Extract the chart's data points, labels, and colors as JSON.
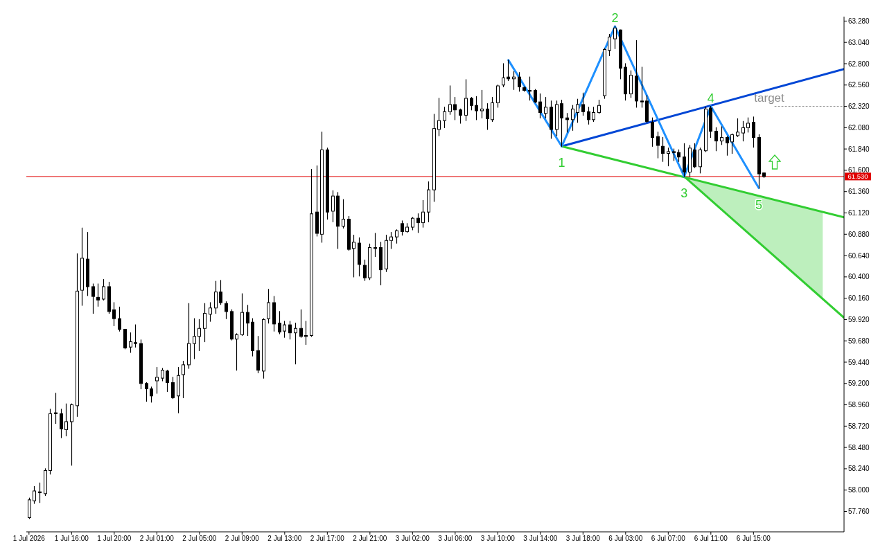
{
  "chart_data": {
    "type": "candlestick",
    "color": "#000000",
    "categories": [
      "1 Jul 2026",
      null,
      null,
      null,
      null,
      null,
      null,
      null,
      "1 Jul 16:00",
      null,
      null,
      null,
      null,
      null,
      null,
      null,
      "1 Jul 20:00",
      null,
      null,
      null,
      null,
      null,
      null,
      null,
      "2 Jul 01:00",
      null,
      null,
      null,
      null,
      null,
      null,
      null,
      "2 Jul 05:00",
      null,
      null,
      null,
      null,
      null,
      null,
      null,
      "2 Jul 09:00",
      null,
      null,
      null,
      null,
      null,
      null,
      null,
      "2 Jul 13:00",
      null,
      null,
      null,
      null,
      null,
      null,
      null,
      "2 Jul 17:00",
      null,
      null,
      null,
      null,
      null,
      null,
      null,
      "2 Jul 21:00",
      null,
      null,
      null,
      null,
      null,
      null,
      null,
      "3 Jul 02:00",
      null,
      null,
      null,
      null,
      null,
      null,
      null,
      "3 Jul 06:00",
      null,
      null,
      null,
      null,
      null,
      null,
      null,
      "3 Jul 10:00",
      null,
      null,
      null,
      null,
      null,
      null,
      null,
      "3 Jul 14:00",
      null,
      null,
      null,
      null,
      null,
      null,
      null,
      "3 Jul 18:00",
      null,
      null,
      null,
      null,
      null,
      null,
      null,
      "6 Jul 03:00",
      null,
      null,
      null,
      null,
      null,
      null,
      null,
      "6 Jul 07:00",
      null,
      null,
      null,
      null,
      null,
      null,
      null,
      "6 Jul 11:00",
      null,
      null,
      null,
      null,
      null,
      null,
      null,
      "6 Jul 15:00",
      null,
      null,
      null,
      null,
      null,
      null,
      null,
      null,
      null,
      null,
      null,
      null,
      null,
      null,
      null,
      null,
      null
    ],
    "ohlc": [
      [
        57.69,
        57.91,
        57.68,
        57.89
      ],
      [
        57.88,
        58.04,
        57.85,
        57.99
      ],
      [
        57.98,
        58.08,
        57.86,
        57.97
      ],
      [
        57.96,
        58.24,
        57.94,
        58.22
      ],
      [
        58.22,
        58.91,
        58.18,
        58.86
      ],
      [
        58.87,
        59.09,
        58.75,
        58.86
      ],
      [
        58.86,
        58.91,
        58.59,
        58.69
      ],
      [
        58.68,
        58.97,
        58.61,
        58.77
      ],
      [
        58.77,
        58.97,
        58.28,
        58.96
      ],
      [
        58.95,
        60.66,
        58.83,
        60.24
      ],
      [
        60.25,
        60.95,
        60.08,
        60.61
      ],
      [
        60.6,
        60.9,
        60.19,
        60.29
      ],
      [
        60.29,
        60.32,
        59.99,
        60.18
      ],
      [
        60.17,
        60.32,
        60.07,
        60.14
      ],
      [
        60.15,
        60.37,
        60.14,
        60.29
      ],
      [
        60.29,
        60.34,
        59.99,
        60.01
      ],
      [
        60.03,
        60.11,
        59.85,
        59.93
      ],
      [
        59.93,
        60.06,
        59.79,
        59.81
      ],
      [
        59.81,
        59.81,
        59.59,
        59.6
      ],
      [
        59.61,
        59.77,
        59.55,
        59.67
      ],
      [
        59.66,
        59.86,
        59.61,
        59.65
      ],
      [
        59.65,
        59.69,
        59.14,
        59.2
      ],
      [
        59.2,
        59.21,
        59.0,
        59.14
      ],
      [
        59.14,
        59.16,
        58.99,
        59.06
      ],
      [
        59.23,
        59.38,
        59.09,
        59.27
      ],
      [
        59.26,
        59.37,
        59.23,
        59.35
      ],
      [
        59.34,
        59.35,
        59.11,
        59.21
      ],
      [
        59.21,
        59.27,
        59.03,
        59.04
      ],
      [
        59.06,
        59.38,
        58.87,
        59.29
      ],
      [
        59.3,
        59.45,
        59.04,
        59.41
      ],
      [
        59.41,
        60.1,
        59.37,
        59.65
      ],
      [
        59.65,
        59.93,
        59.48,
        59.73
      ],
      [
        59.73,
        59.92,
        59.57,
        59.82
      ],
      [
        59.82,
        60.1,
        59.67,
        59.99
      ],
      [
        59.98,
        60.11,
        59.9,
        60.05
      ],
      [
        60.05,
        60.35,
        59.99,
        60.23
      ],
      [
        60.23,
        60.36,
        60.09,
        60.11
      ],
      [
        60.1,
        60.12,
        59.93,
        60.01
      ],
      [
        60.01,
        60.03,
        59.69,
        59.7
      ],
      [
        59.7,
        59.76,
        59.35,
        59.75
      ],
      [
        59.75,
        60.21,
        59.74,
        60.0
      ],
      [
        60.0,
        60.08,
        59.74,
        59.88
      ],
      [
        59.89,
        59.93,
        59.51,
        59.57
      ],
      [
        59.57,
        59.73,
        59.32,
        59.35
      ],
      [
        59.34,
        59.93,
        59.26,
        59.92
      ],
      [
        59.93,
        60.26,
        59.88,
        60.11
      ],
      [
        60.11,
        60.18,
        59.79,
        59.87
      ],
      [
        59.88,
        60.01,
        59.76,
        59.78
      ],
      [
        59.79,
        59.9,
        59.72,
        59.86
      ],
      [
        59.86,
        59.9,
        59.7,
        59.77
      ],
      [
        59.77,
        59.88,
        59.42,
        59.82
      ],
      [
        59.82,
        60.03,
        59.72,
        59.73
      ],
      [
        59.74,
        59.9,
        59.64,
        59.73
      ],
      [
        59.74,
        61.61,
        59.73,
        61.11
      ],
      [
        61.13,
        61.65,
        60.86,
        60.89
      ],
      [
        60.88,
        62.03,
        60.79,
        61.83
      ],
      [
        61.83,
        61.85,
        61.05,
        61.13
      ],
      [
        61.14,
        61.37,
        61.02,
        61.31
      ],
      [
        61.31,
        61.35,
        60.72,
        60.97
      ],
      [
        60.97,
        61.27,
        60.95,
        61.05
      ],
      [
        61.05,
        61.08,
        60.7,
        60.71
      ],
      [
        60.72,
        60.87,
        60.4,
        60.79
      ],
      [
        60.78,
        60.84,
        60.41,
        60.54
      ],
      [
        60.53,
        60.59,
        60.36,
        60.39
      ],
      [
        60.39,
        60.77,
        60.37,
        60.73
      ],
      [
        60.73,
        60.89,
        60.63,
        60.72
      ],
      [
        60.73,
        60.79,
        60.31,
        60.48
      ],
      [
        60.49,
        60.87,
        60.46,
        60.81
      ],
      [
        60.81,
        60.9,
        60.72,
        60.85
      ],
      [
        60.85,
        60.93,
        60.78,
        60.92
      ],
      [
        61.0,
        61.03,
        60.87,
        60.91
      ],
      [
        60.91,
        61.0,
        60.9,
        60.96
      ],
      [
        60.96,
        61.07,
        60.93,
        61.06
      ],
      [
        61.06,
        61.11,
        60.9,
        61.01
      ],
      [
        61.01,
        61.26,
        60.96,
        61.13
      ],
      [
        61.13,
        61.47,
        61.02,
        61.38
      ],
      [
        61.38,
        62.23,
        61.25,
        62.07
      ],
      [
        62.06,
        62.41,
        61.99,
        62.16
      ],
      [
        62.16,
        62.31,
        62.08,
        62.26
      ],
      [
        62.26,
        62.55,
        62.23,
        62.34
      ],
      [
        62.34,
        62.42,
        62.17,
        62.28
      ],
      [
        62.28,
        62.29,
        62.13,
        62.22
      ],
      [
        62.22,
        62.62,
        62.16,
        62.41
      ],
      [
        62.41,
        62.42,
        62.28,
        62.33
      ],
      [
        62.33,
        62.43,
        62.17,
        62.27
      ],
      [
        62.27,
        62.5,
        62.19,
        62.29
      ],
      [
        62.29,
        62.35,
        62.06,
        62.18
      ],
      [
        62.17,
        62.42,
        62.15,
        62.36
      ],
      [
        62.36,
        62.56,
        62.31,
        62.55
      ],
      [
        62.56,
        62.8,
        62.54,
        62.64
      ],
      [
        62.65,
        62.84,
        62.61,
        62.63
      ],
      [
        62.63,
        62.71,
        62.51,
        62.65
      ],
      [
        62.65,
        62.7,
        62.49,
        62.54
      ],
      [
        62.53,
        62.54,
        62.49,
        62.5
      ],
      [
        62.5,
        62.65,
        62.39,
        62.49
      ],
      [
        62.5,
        62.51,
        62.36,
        62.37
      ],
      [
        62.37,
        62.46,
        62.19,
        62.25
      ],
      [
        62.24,
        62.42,
        62.19,
        62.31
      ],
      [
        62.31,
        62.38,
        61.96,
        62.06
      ],
      [
        62.06,
        62.38,
        61.99,
        62.34
      ],
      [
        62.35,
        62.39,
        61.87,
        62.19
      ],
      [
        62.19,
        62.24,
        62.03,
        62.17
      ],
      [
        62.17,
        62.33,
        62.05,
        62.29
      ],
      [
        62.25,
        62.4,
        62.14,
        62.34
      ],
      [
        62.34,
        62.47,
        62.22,
        62.26
      ],
      [
        62.26,
        62.31,
        62.12,
        62.17
      ],
      [
        62.17,
        62.31,
        62.15,
        62.25
      ],
      [
        62.25,
        62.39,
        62.24,
        62.33
      ],
      [
        62.44,
        62.97,
        62.41,
        62.96
      ],
      [
        62.95,
        63.13,
        62.89,
        63.1
      ],
      [
        63.08,
        63.22,
        62.97,
        63.2
      ],
      [
        63.18,
        63.18,
        62.63,
        62.75
      ],
      [
        62.76,
        62.8,
        62.39,
        62.46
      ],
      [
        62.46,
        62.72,
        62.42,
        62.67
      ],
      [
        62.66,
        63.06,
        62.31,
        62.38
      ],
      [
        62.38,
        62.76,
        62.31,
        62.37
      ],
      [
        62.38,
        62.44,
        62.14,
        62.15
      ],
      [
        62.14,
        62.19,
        61.87,
        61.97
      ],
      [
        61.98,
        62.03,
        61.74,
        61.88
      ],
      [
        61.87,
        61.97,
        61.7,
        61.79
      ],
      [
        61.79,
        61.85,
        61.65,
        61.81
      ],
      [
        61.81,
        61.84,
        61.71,
        61.8
      ],
      [
        61.8,
        61.83,
        61.7,
        61.75
      ],
      [
        61.75,
        61.9,
        61.53,
        61.58
      ],
      [
        61.58,
        61.88,
        61.53,
        61.85
      ],
      [
        61.83,
        61.9,
        61.63,
        61.64
      ],
      [
        61.64,
        61.85,
        61.57,
        61.83
      ],
      [
        61.82,
        62.31,
        61.81,
        62.29
      ],
      [
        62.3,
        62.32,
        61.97,
        62.04
      ],
      [
        62.04,
        62.08,
        61.82,
        61.93
      ],
      [
        61.93,
        62.09,
        61.89,
        61.97
      ],
      [
        61.97,
        61.98,
        61.77,
        61.91
      ],
      [
        61.92,
        62.01,
        61.79,
        62.0
      ],
      [
        61.99,
        62.18,
        61.98,
        62.03
      ],
      [
        62.02,
        62.15,
        61.93,
        62.08
      ],
      [
        62.08,
        62.19,
        62.03,
        62.13
      ],
      [
        62.14,
        62.2,
        61.86,
        61.97
      ],
      [
        61.97,
        62.0,
        61.4,
        61.56
      ],
      [
        61.57,
        61.57,
        61.52,
        61.53
      ],
      null,
      null,
      null,
      null,
      null,
      null,
      null,
      null,
      null,
      null,
      null,
      null,
      null,
      null,
      null
    ],
    "series": [
      {
        "type": "line",
        "color": "#1e90ff",
        "values": [
          null,
          null,
          null,
          null,
          null,
          null,
          null,
          null,
          null,
          null,
          null,
          null,
          null,
          null,
          null,
          null,
          null,
          null,
          null,
          null,
          null,
          null,
          null,
          null,
          null,
          null,
          null,
          null,
          null,
          null,
          null,
          null,
          null,
          null,
          null,
          null,
          null,
          null,
          null,
          null,
          null,
          null,
          null,
          null,
          null,
          null,
          null,
          null,
          null,
          null,
          null,
          null,
          null,
          null,
          null,
          null,
          null,
          null,
          null,
          null,
          null,
          null,
          null,
          null,
          null,
          null,
          null,
          null,
          null,
          null,
          null,
          null,
          null,
          null,
          null,
          null,
          null,
          null,
          null,
          null,
          null,
          null,
          null,
          null,
          null,
          null,
          null,
          null,
          null,
          null,
          62.84,
          null,
          null,
          null,
          null,
          null,
          null,
          null,
          null,
          null,
          61.87,
          null,
          null,
          null,
          null,
          null,
          null,
          null,
          null,
          null,
          63.22,
          null,
          null,
          null,
          null,
          null,
          null,
          null,
          null,
          null,
          null,
          null,
          null,
          61.53,
          null,
          null,
          null,
          null,
          62.32,
          null,
          null,
          null,
          null,
          null,
          null,
          null,
          null,
          61.4,
          null,
          null,
          null,
          null,
          null,
          null,
          null,
          null,
          null,
          null,
          null,
          null,
          null,
          null,
          null,
          null
        ]
      },
      {
        "type": "line",
        "color": "#32cd32",
        "values": [
          null,
          null,
          null,
          null,
          null,
          null,
          null,
          null,
          null,
          null,
          null,
          null,
          null,
          null,
          null,
          null,
          null,
          null,
          null,
          null,
          null,
          null,
          null,
          null,
          null,
          null,
          null,
          null,
          null,
          null,
          null,
          null,
          null,
          null,
          null,
          null,
          null,
          null,
          null,
          null,
          null,
          null,
          null,
          null,
          null,
          null,
          null,
          null,
          null,
          null,
          null,
          null,
          null,
          null,
          null,
          null,
          null,
          null,
          null,
          null,
          null,
          null,
          null,
          null,
          null,
          null,
          null,
          null,
          null,
          null,
          null,
          null,
          null,
          null,
          null,
          null,
          null,
          null,
          null,
          null,
          null,
          null,
          null,
          null,
          null,
          null,
          null,
          null,
          null,
          null,
          null,
          null,
          null,
          null,
          null,
          null,
          null,
          null,
          null,
          null,
          61.87,
          null,
          null,
          null,
          null,
          null,
          null,
          null,
          null,
          null,
          null,
          null,
          null,
          null,
          null,
          null,
          null,
          null,
          null,
          null,
          null,
          null,
          null,
          null,
          null,
          null,
          null,
          null,
          null,
          null,
          null,
          null,
          null,
          null,
          null,
          null,
          null,
          null,
          null,
          null,
          null,
          null,
          null,
          null,
          null,
          null,
          null,
          null,
          null,
          null,
          null,
          null,
          null,
          61.07
        ]
      },
      {
        "type": "line",
        "color": "#32cd32",
        "values": [
          null,
          null,
          null,
          null,
          null,
          null,
          null,
          null,
          null,
          null,
          null,
          null,
          null,
          null,
          null,
          null,
          null,
          null,
          null,
          null,
          null,
          null,
          null,
          null,
          null,
          null,
          null,
          null,
          null,
          null,
          null,
          null,
          null,
          null,
          null,
          null,
          null,
          null,
          null,
          null,
          null,
          null,
          null,
          null,
          null,
          null,
          null,
          null,
          null,
          null,
          null,
          null,
          null,
          null,
          null,
          null,
          null,
          null,
          null,
          null,
          null,
          null,
          null,
          null,
          null,
          null,
          null,
          null,
          null,
          null,
          null,
          null,
          null,
          null,
          null,
          null,
          null,
          null,
          null,
          null,
          null,
          null,
          null,
          null,
          null,
          null,
          null,
          null,
          null,
          null,
          null,
          null,
          null,
          null,
          null,
          null,
          null,
          null,
          null,
          null,
          null,
          null,
          null,
          null,
          null,
          null,
          null,
          null,
          null,
          null,
          null,
          null,
          null,
          null,
          null,
          null,
          null,
          null,
          null,
          null,
          null,
          null,
          null,
          61.53,
          null,
          null,
          null,
          null,
          null,
          null,
          null,
          null,
          null,
          null,
          null,
          null,
          null,
          null,
          null,
          null,
          null,
          null,
          null,
          null,
          null,
          null,
          null,
          null,
          null,
          null,
          null,
          null,
          null,
          59.94
        ],
        "lower": [
          null,
          null,
          null,
          null,
          null,
          null,
          null,
          null,
          null,
          null,
          null,
          null,
          null,
          null,
          null,
          null,
          null,
          null,
          null,
          null,
          null,
          null,
          null,
          null,
          null,
          null,
          null,
          null,
          null,
          null,
          null,
          null,
          null,
          null,
          null,
          null,
          null,
          null,
          null,
          null,
          null,
          null,
          null,
          null,
          null,
          null,
          null,
          null,
          null,
          null,
          null,
          null,
          null,
          null,
          null,
          null,
          null,
          null,
          null,
          null,
          null,
          null,
          null,
          null,
          null,
          null,
          null,
          null,
          null,
          null,
          null,
          null,
          null,
          null,
          null,
          null,
          null,
          null,
          null,
          null,
          null,
          null,
          null,
          null,
          null,
          null,
          null,
          null,
          null,
          null,
          null,
          null,
          null,
          null,
          null,
          null,
          null,
          null,
          null,
          null,
          null,
          null,
          null,
          null,
          null,
          null,
          null,
          null,
          null,
          null,
          null,
          null,
          null,
          null,
          null,
          null,
          null,
          null,
          null,
          null,
          null,
          null,
          null,
          61.53,
          null,
          null,
          null,
          null,
          null,
          null,
          null,
          null,
          null,
          null,
          null,
          null,
          null,
          null,
          null,
          null,
          null,
          null,
          null,
          null,
          null,
          null,
          null,
          null,
          null,
          60.15,
          null,
          null,
          null,
          null
        ],
        "upper": [
          null,
          null,
          null,
          null,
          null,
          null,
          null,
          null,
          null,
          null,
          null,
          null,
          null,
          null,
          null,
          null,
          null,
          null,
          null,
          null,
          null,
          null,
          null,
          null,
          null,
          null,
          null,
          null,
          null,
          null,
          null,
          null,
          null,
          null,
          null,
          null,
          null,
          null,
          null,
          null,
          null,
          null,
          null,
          null,
          null,
          null,
          null,
          null,
          null,
          null,
          null,
          null,
          null,
          null,
          null,
          null,
          null,
          null,
          null,
          null,
          null,
          null,
          null,
          null,
          null,
          null,
          null,
          null,
          null,
          null,
          null,
          null,
          null,
          null,
          null,
          null,
          null,
          null,
          null,
          null,
          null,
          null,
          null,
          null,
          null,
          null,
          null,
          null,
          null,
          null,
          null,
          null,
          null,
          null,
          null,
          null,
          null,
          null,
          null,
          null,
          null,
          null,
          null,
          null,
          null,
          null,
          null,
          null,
          null,
          null,
          null,
          null,
          null,
          null,
          null,
          null,
          null,
          null,
          null,
          null,
          null,
          null,
          null,
          61.53,
          null,
          null,
          null,
          null,
          null,
          null,
          null,
          null,
          null,
          null,
          null,
          null,
          null,
          null,
          null,
          null,
          null,
          null,
          null,
          null,
          null,
          null,
          null,
          null,
          null,
          61.13,
          null,
          null,
          null,
          null
        ]
      },
      {
        "type": "line",
        "color": "#0046d5",
        "values": [
          null,
          null,
          null,
          null,
          null,
          null,
          null,
          null,
          null,
          null,
          null,
          null,
          null,
          null,
          null,
          null,
          null,
          null,
          null,
          null,
          null,
          null,
          null,
          null,
          null,
          null,
          null,
          null,
          null,
          null,
          null,
          null,
          null,
          null,
          null,
          null,
          null,
          null,
          null,
          null,
          null,
          null,
          null,
          null,
          null,
          null,
          null,
          null,
          null,
          null,
          null,
          null,
          null,
          null,
          null,
          null,
          null,
          null,
          null,
          null,
          null,
          null,
          null,
          null,
          null,
          null,
          null,
          null,
          null,
          null,
          null,
          null,
          null,
          null,
          null,
          null,
          null,
          null,
          null,
          null,
          null,
          null,
          null,
          null,
          null,
          null,
          null,
          null,
          null,
          null,
          null,
          null,
          null,
          null,
          null,
          null,
          null,
          null,
          null,
          null,
          61.87,
          null,
          null,
          null,
          null,
          null,
          null,
          null,
          null,
          null,
          null,
          null,
          null,
          null,
          null,
          null,
          null,
          null,
          null,
          null,
          null,
          null,
          null,
          null,
          null,
          null,
          null,
          null,
          null,
          null,
          null,
          null,
          null,
          null,
          null,
          null,
          null,
          null,
          null,
          null,
          null,
          null,
          null,
          null,
          null,
          null,
          null,
          null,
          null,
          null,
          null,
          null,
          null,
          62.74
        ]
      },
      {
        "type": "line",
        "name": "target",
        "color": "#8c8c8c",
        "line_style": "dotted",
        "values": [
          null,
          null,
          null,
          null,
          null,
          null,
          null,
          null,
          null,
          null,
          null,
          null,
          null,
          null,
          null,
          null,
          null,
          null,
          null,
          null,
          null,
          null,
          null,
          null,
          null,
          null,
          null,
          null,
          null,
          null,
          null,
          null,
          null,
          null,
          null,
          null,
          null,
          null,
          null,
          null,
          null,
          null,
          null,
          null,
          null,
          null,
          null,
          null,
          null,
          null,
          null,
          null,
          null,
          null,
          null,
          null,
          null,
          null,
          null,
          null,
          null,
          null,
          null,
          null,
          null,
          null,
          null,
          null,
          null,
          null,
          null,
          null,
          null,
          null,
          null,
          null,
          null,
          null,
          null,
          null,
          null,
          null,
          null,
          null,
          null,
          null,
          null,
          null,
          null,
          null,
          null,
          null,
          null,
          null,
          null,
          null,
          null,
          null,
          null,
          null,
          null,
          null,
          null,
          null,
          null,
          null,
          null,
          null,
          null,
          null,
          null,
          null,
          null,
          null,
          null,
          null,
          null,
          null,
          null,
          null,
          null,
          null,
          null,
          null,
          null,
          null,
          null,
          null,
          null,
          null,
          null,
          null,
          null,
          null,
          null,
          null,
          null,
          null,
          null,
          null,
          62.32,
          null,
          null,
          null,
          null,
          null,
          null,
          null,
          null,
          null,
          null,
          null,
          null,
          62.32
        ]
      }
    ],
    "annotations": [
      {
        "text": "1",
        "y": 61.87
      },
      {
        "text": "2",
        "y": 63.22
      },
      {
        "text": "3",
        "y": 61.53
      },
      {
        "text": "4",
        "y": 62.32
      },
      {
        "text": "5",
        "y": 61.4
      }
    ],
    "ylim": [
      57.53,
      63.33
    ],
    "yticks": [
      {
        "value": 57.76,
        "label": "57.760"
      },
      {
        "value": 58.0,
        "label": "58.000"
      },
      {
        "value": 58.24,
        "label": "58.240"
      },
      {
        "value": 58.48,
        "label": "58.480"
      },
      {
        "value": 58.72,
        "label": "58.720"
      },
      {
        "value": 58.96,
        "label": "58.960"
      },
      {
        "value": 59.2,
        "label": "59.200"
      },
      {
        "value": 59.44,
        "label": "59.440"
      },
      {
        "value": 59.68,
        "label": "59.680"
      },
      {
        "value": 59.92,
        "label": "59.920"
      },
      {
        "value": 60.16,
        "label": "60.160"
      },
      {
        "value": 60.4,
        "label": "60.400"
      },
      {
        "value": 60.64,
        "label": "60.640"
      },
      {
        "value": 60.88,
        "label": "60.880"
      },
      {
        "value": 61.12,
        "label": "61.120"
      },
      {
        "value": 61.36,
        "label": "61.360"
      },
      {
        "value": 61.6,
        "label": "61.600"
      },
      {
        "value": 61.84,
        "label": "61.840"
      },
      {
        "value": 62.08,
        "label": "62.080"
      },
      {
        "value": 62.32,
        "label": "62.320"
      },
      {
        "value": 62.56,
        "label": "62.560"
      },
      {
        "value": 62.8,
        "label": "62.800"
      },
      {
        "value": 63.04,
        "label": "63.040"
      },
      {
        "value": 63.28,
        "label": "63.280"
      }
    ],
    "ref_lines": [
      {
        "axis": "y",
        "value": 61.53,
        "label": "61.530",
        "color": "#e00000"
      }
    ]
  }
}
